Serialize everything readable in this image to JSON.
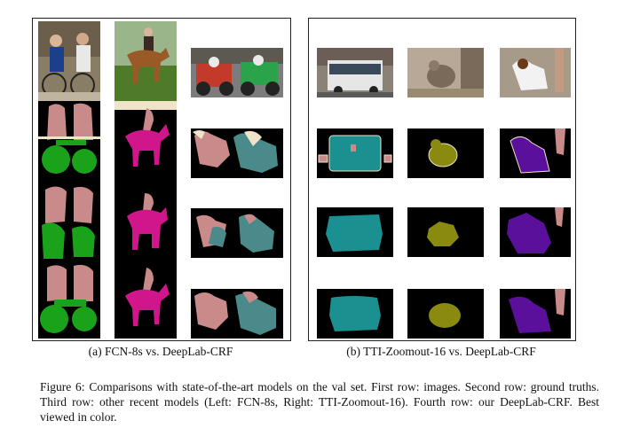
{
  "panels": [
    {
      "id": "a",
      "caption": "(a) FCN-8s vs. DeepLab-CRF"
    },
    {
      "id": "b",
      "caption": "(b) TTI-Zoomout-16 vs. DeepLab-CRF"
    }
  ],
  "figure_caption": "Figure 6: Comparisons with state-of-the-art models on the val set. First row: images. Second row: ground truths. Third row: other recent models (Left: FCN-8s, Right: TTI-Zoomout-16). Fourth row: our DeepLab-CRF. Best viewed in color.",
  "colors": {
    "person": "#c98a8a",
    "bicycle": "#1aa31a",
    "horse": "#d1168c",
    "motorbike": "#4b8a8a",
    "bus": "#1a9090",
    "bird": "#8a8a10",
    "dog": "#5a109a",
    "boundary": "#efe4c8",
    "background": "#000000"
  }
}
